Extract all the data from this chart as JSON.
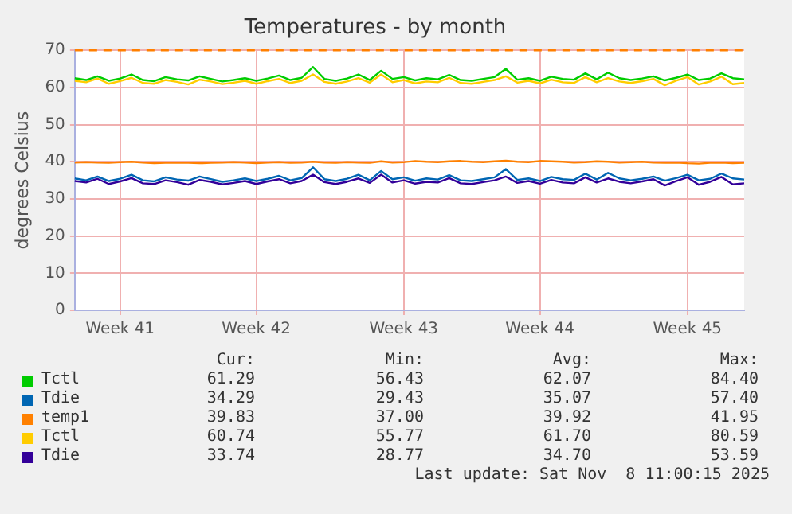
{
  "chart_data": {
    "type": "line",
    "title": "Temperatures - by month",
    "ylabel": "degrees Celsius",
    "categories": [
      null,
      null,
      null,
      null,
      "Week 41",
      null,
      null,
      null,
      null,
      null,
      null,
      null,
      null,
      null,
      null,
      null,
      "Week 42",
      null,
      null,
      null,
      null,
      null,
      null,
      null,
      null,
      null,
      null,
      null,
      null,
      "Week 43",
      null,
      null,
      null,
      null,
      null,
      null,
      null,
      null,
      null,
      null,
      null,
      "Week 44",
      null,
      null,
      null,
      null,
      null,
      null,
      null,
      null,
      null,
      null,
      null,
      null,
      "Week 45",
      null,
      null,
      null,
      null,
      null
    ],
    "series": [
      {
        "name": "Tctl",
        "color": "#00cc00",
        "values": [
          62.5,
          62,
          63,
          61.8,
          62.4,
          63.5,
          62,
          61.7,
          62.8,
          62.2,
          61.9,
          63,
          62.3,
          61.6,
          62,
          62.5,
          61.8,
          62.4,
          63.2,
          62,
          62.6,
          65.5,
          62.3,
          61.8,
          62.4,
          63.5,
          62,
          64.5,
          62.3,
          62.8,
          61.9,
          62.5,
          62.2,
          63.4,
          62,
          61.8,
          62.3,
          62.8,
          65,
          62.1,
          62.5,
          61.8,
          62.9,
          62.3,
          62.1,
          63.8,
          62.2,
          64,
          62.5,
          62,
          62.4,
          63,
          61.9,
          62.6,
          63.5,
          62,
          62.4,
          63.8,
          62.5,
          62.2
        ]
      },
      {
        "name": "Tdie",
        "color": "#0066b3",
        "values": [
          35.5,
          35,
          36,
          34.8,
          35.4,
          36.5,
          35,
          34.7,
          35.8,
          35.2,
          34.9,
          36,
          35.3,
          34.6,
          35,
          35.5,
          34.8,
          35.4,
          36.2,
          35,
          35.6,
          38.5,
          35.3,
          34.8,
          35.4,
          36.5,
          35,
          37.5,
          35.3,
          35.8,
          34.9,
          35.5,
          35.2,
          36.4,
          35,
          34.8,
          35.3,
          35.8,
          38,
          35.1,
          35.5,
          34.8,
          35.9,
          35.3,
          35.1,
          36.8,
          35.2,
          37,
          35.5,
          35,
          35.4,
          36,
          34.9,
          35.6,
          36.5,
          35,
          35.4,
          36.8,
          35.5,
          35.2
        ]
      },
      {
        "name": "temp1",
        "color": "#ff8000",
        "values": [
          39.8,
          39.9,
          39.8,
          39.7,
          39.9,
          40,
          39.8,
          39.6,
          39.7,
          39.8,
          39.7,
          39.6,
          39.7,
          39.8,
          39.9,
          39.8,
          39.6,
          39.8,
          39.9,
          39.7,
          39.8,
          40,
          39.8,
          39.7,
          39.9,
          39.8,
          39.7,
          40.1,
          39.8,
          39.9,
          40.2,
          40,
          39.9,
          40.1,
          40.2,
          40,
          39.9,
          40.1,
          40.3,
          40,
          39.9,
          40.2,
          40.1,
          40,
          39.8,
          39.9,
          40.1,
          40,
          39.8,
          39.9,
          40,
          39.8,
          39.7,
          39.8,
          39.6,
          39.5,
          39.7,
          39.8,
          39.6,
          39.7
        ]
      },
      {
        "name": "Tctl",
        "color": "#ffcc00",
        "values": [
          61.8,
          61.4,
          62.4,
          61,
          61.7,
          62.6,
          61.2,
          61,
          62,
          61.5,
          60.8,
          62.1,
          61.6,
          60.9,
          61.3,
          61.8,
          61,
          61.7,
          62.3,
          61.2,
          61.8,
          63.5,
          61.5,
          61,
          61.6,
          62.5,
          61.3,
          63.5,
          61.4,
          62,
          61.1,
          61.6,
          61.4,
          62.6,
          61.2,
          61,
          61.5,
          62,
          63,
          61.3,
          61.8,
          61.1,
          62.1,
          61.4,
          61.2,
          62.8,
          61.4,
          62.5,
          61.6,
          61.2,
          61.7,
          62.3,
          60.6,
          61.8,
          62.8,
          60.8,
          61.6,
          62.9,
          60.9,
          61.2
        ]
      },
      {
        "name": "Tdie",
        "color": "#330099",
        "values": [
          34.8,
          34.4,
          35.4,
          34,
          34.7,
          35.6,
          34.2,
          34,
          35,
          34.5,
          33.8,
          35.1,
          34.6,
          33.9,
          34.3,
          34.8,
          34,
          34.7,
          35.3,
          34.2,
          34.8,
          36.5,
          34.5,
          34,
          34.6,
          35.5,
          34.3,
          36.5,
          34.4,
          35,
          34.1,
          34.6,
          34.4,
          35.6,
          34.2,
          34,
          34.5,
          35,
          36,
          34.3,
          34.8,
          34.1,
          35.1,
          34.4,
          34.2,
          35.8,
          34.4,
          35.5,
          34.6,
          34.2,
          34.7,
          35.3,
          33.6,
          34.8,
          35.8,
          33.8,
          34.6,
          35.9,
          33.9,
          34.2
        ]
      }
    ],
    "ylim": [
      0,
      70
    ],
    "yticks": [
      0,
      10,
      20,
      30,
      40,
      50,
      60,
      70
    ],
    "ref_lines": [
      {
        "axis": "y",
        "value": 70,
        "color": "#ff8000",
        "line_style": "dashed"
      }
    ],
    "grid": true,
    "legend": "bottom",
    "marker": "none",
    "line_style": "solid",
    "annotations": [
      "Cur:",
      "Min:",
      "Avg:",
      "Max:",
      "61.29",
      "56.43",
      "62.07",
      "84.40",
      "34.29",
      "29.43",
      "35.07",
      "57.40",
      "39.83",
      "37.00",
      "39.92",
      "41.95",
      "60.74",
      "55.77",
      "61.70",
      "80.59",
      "33.74",
      "28.77",
      "34.70",
      "53.59",
      "Last update: Sat Nov  8 11:00:15 2025"
    ]
  }
}
